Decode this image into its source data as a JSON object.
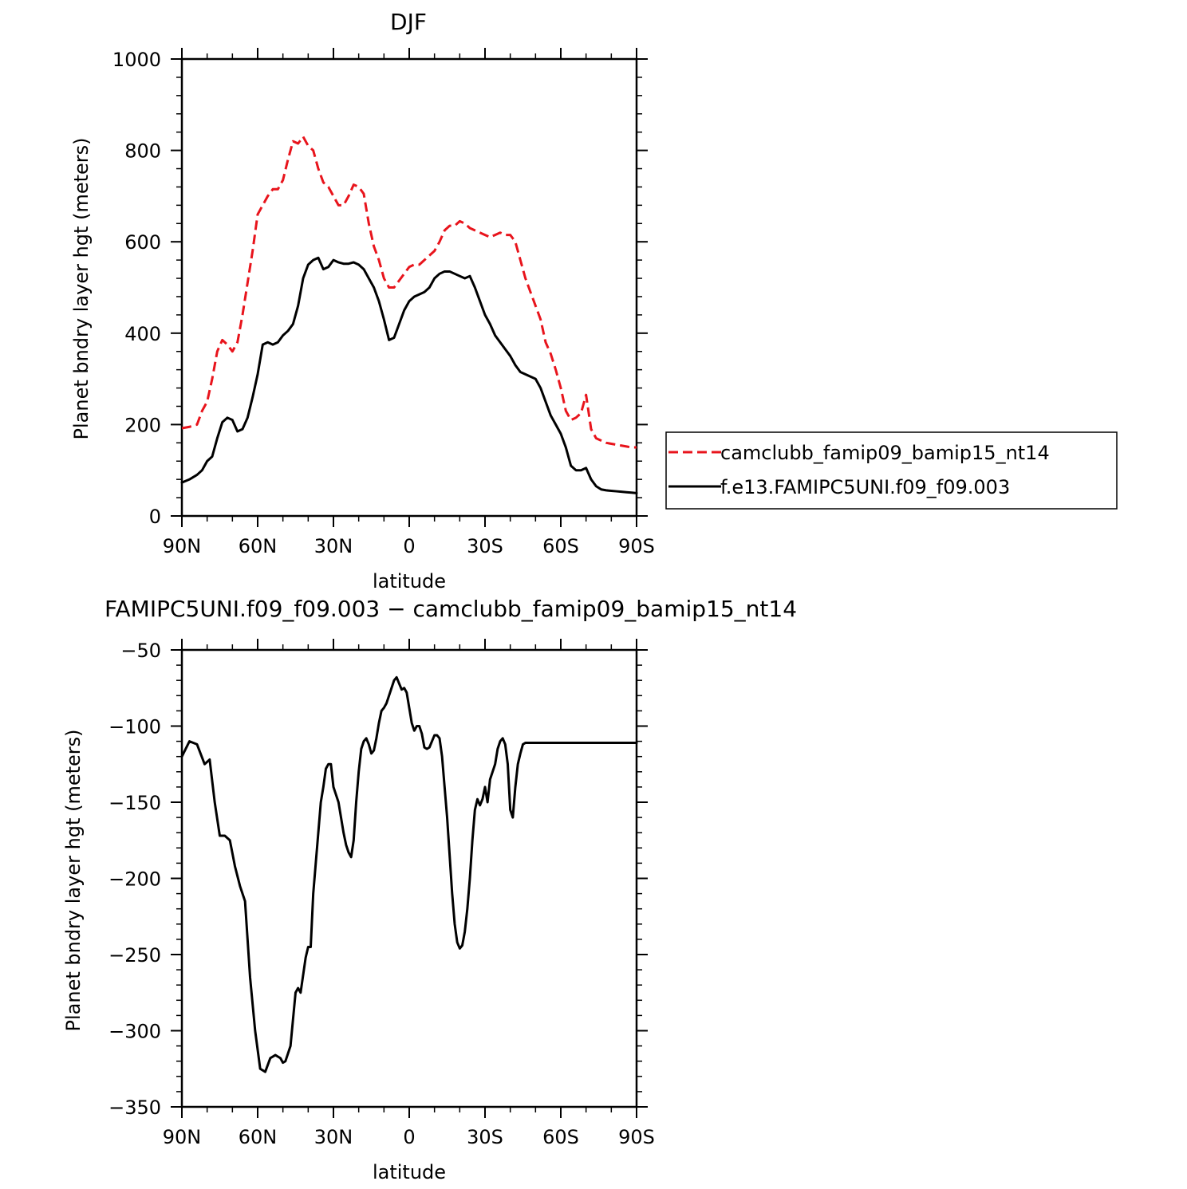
{
  "chart_data": [
    {
      "type": "line",
      "title": "DJF",
      "xlabel": "latitude",
      "ylabel": "Planet bndry layer hgt (meters)",
      "xlim": [
        90,
        -90
      ],
      "ylim": [
        0,
        1000
      ],
      "x_ticks": [
        {
          "value": 90,
          "label": "90N"
        },
        {
          "value": 60,
          "label": "60N"
        },
        {
          "value": 30,
          "label": "30N"
        },
        {
          "value": 0,
          "label": "0"
        },
        {
          "value": -30,
          "label": "30S"
        },
        {
          "value": -60,
          "label": "60S"
        },
        {
          "value": -90,
          "label": "90S"
        }
      ],
      "y_ticks": [
        {
          "value": 0,
          "label": "0"
        },
        {
          "value": 200,
          "label": "200"
        },
        {
          "value": 400,
          "label": "400"
        },
        {
          "value": 600,
          "label": "600"
        },
        {
          "value": 800,
          "label": "800"
        },
        {
          "value": 1000,
          "label": "1000"
        }
      ],
      "legend_position": "right",
      "series": [
        {
          "name": "camclubb_famip09_bamip15_nt14",
          "color": "#e8141c",
          "dash": "dashed",
          "x": [
            90,
            87,
            84,
            82,
            80,
            78,
            76,
            74,
            72,
            70,
            68,
            66,
            64,
            62,
            60,
            58,
            56,
            54,
            52,
            50,
            48,
            46,
            44,
            42,
            40,
            38,
            36,
            34,
            32,
            30,
            28,
            26,
            24,
            22,
            20,
            18,
            16,
            14,
            12,
            10,
            8,
            6,
            4,
            2,
            0,
            -2,
            -4,
            -6,
            -8,
            -10,
            -12,
            -14,
            -16,
            -18,
            -20,
            -22,
            -24,
            -26,
            -28,
            -30,
            -32,
            -34,
            -36,
            -38,
            -40,
            -42,
            -44,
            -46,
            -48,
            -50,
            -52,
            -54,
            -56,
            -58,
            -60,
            -62,
            -64,
            -66,
            -68,
            -70,
            -72,
            -74,
            -76,
            -78,
            -80,
            -82,
            -84,
            -86,
            -88,
            -90
          ],
          "y": [
            192,
            195,
            200,
            230,
            250,
            300,
            360,
            385,
            375,
            360,
            380,
            440,
            510,
            580,
            660,
            680,
            700,
            715,
            715,
            735,
            780,
            820,
            815,
            830,
            810,
            800,
            760,
            730,
            720,
            700,
            680,
            680,
            700,
            725,
            720,
            705,
            640,
            590,
            560,
            520,
            500,
            500,
            515,
            530,
            545,
            550,
            550,
            560,
            570,
            580,
            600,
            625,
            635,
            635,
            645,
            640,
            630,
            625,
            620,
            615,
            610,
            615,
            620,
            615,
            615,
            600,
            560,
            520,
            490,
            460,
            430,
            380,
            355,
            320,
            280,
            230,
            210,
            215,
            225,
            265,
            190,
            170,
            165,
            160,
            158,
            156,
            154,
            152,
            150,
            150
          ]
        },
        {
          "name": "f.e13.FAMIPC5UNI.f09_f09.003",
          "color": "#000000",
          "dash": "solid",
          "x": [
            90,
            87,
            84,
            82,
            80,
            78,
            76,
            74,
            72,
            70,
            68,
            66,
            64,
            62,
            60,
            58,
            56,
            54,
            52,
            50,
            48,
            46,
            44,
            42,
            40,
            38,
            36,
            34,
            32,
            30,
            28,
            26,
            24,
            22,
            20,
            18,
            16,
            14,
            12,
            10,
            8,
            6,
            4,
            2,
            0,
            -2,
            -4,
            -6,
            -8,
            -10,
            -12,
            -14,
            -16,
            -18,
            -20,
            -22,
            -24,
            -26,
            -28,
            -30,
            -32,
            -34,
            -36,
            -38,
            -40,
            -42,
            -44,
            -46,
            -48,
            -50,
            -52,
            -54,
            -56,
            -58,
            -60,
            -62,
            -64,
            -66,
            -68,
            -70,
            -72,
            -74,
            -76,
            -78,
            -80,
            -82,
            -84,
            -86,
            -88,
            -90
          ],
          "y": [
            73,
            80,
            90,
            100,
            120,
            130,
            170,
            205,
            215,
            210,
            185,
            190,
            215,
            260,
            310,
            375,
            380,
            375,
            380,
            395,
            405,
            420,
            460,
            520,
            550,
            560,
            565,
            540,
            545,
            560,
            555,
            552,
            552,
            555,
            550,
            540,
            520,
            500,
            470,
            430,
            385,
            390,
            420,
            450,
            470,
            480,
            485,
            490,
            500,
            520,
            530,
            535,
            535,
            530,
            525,
            520,
            525,
            500,
            470,
            440,
            420,
            395,
            380,
            365,
            350,
            330,
            315,
            310,
            305,
            300,
            280,
            250,
            220,
            200,
            180,
            150,
            110,
            100,
            100,
            105,
            80,
            65,
            58,
            56,
            55,
            54,
            53,
            52,
            51,
            50
          ]
        }
      ]
    },
    {
      "type": "line",
      "title": "FAMIPC5UNI.f09_f09.003 − camclubb_famip09_bamip15_nt14",
      "xlabel": "latitude",
      "ylabel": "Planet bndry layer hgt (meters)",
      "xlim": [
        90,
        -90
      ],
      "ylim": [
        -350,
        -50
      ],
      "x_ticks": [
        {
          "value": 90,
          "label": "90N"
        },
        {
          "value": 60,
          "label": "60N"
        },
        {
          "value": 30,
          "label": "30N"
        },
        {
          "value": 0,
          "label": "0"
        },
        {
          "value": -30,
          "label": "30S"
        },
        {
          "value": -60,
          "label": "60S"
        },
        {
          "value": -90,
          "label": "90S"
        }
      ],
      "y_ticks": [
        {
          "value": -350,
          "label": "−350"
        },
        {
          "value": -300,
          "label": "−300"
        },
        {
          "value": -250,
          "label": "−250"
        },
        {
          "value": -200,
          "label": "−200"
        },
        {
          "value": -150,
          "label": "−150"
        },
        {
          "value": -100,
          "label": "−100"
        },
        {
          "value": -50,
          "label": "−50"
        }
      ],
      "series": [
        {
          "color": "#000000",
          "dash": "solid",
          "x": [
            90,
            87,
            84,
            81,
            79,
            77,
            75,
            73,
            71,
            69,
            67,
            65,
            63,
            61,
            59,
            57,
            55,
            53,
            51,
            50,
            49,
            47,
            45,
            44,
            43,
            41,
            40,
            39,
            38,
            37,
            36,
            35,
            34,
            33,
            32,
            31,
            30,
            29,
            28,
            27,
            26,
            25,
            24,
            23,
            22,
            21,
            20,
            19,
            18,
            17,
            16,
            15,
            14,
            13,
            12,
            11,
            10,
            9,
            8,
            7,
            6,
            5,
            4,
            3,
            2,
            1,
            0,
            -1,
            -2,
            -3,
            -4,
            -5,
            -6,
            -7,
            -8,
            -9,
            -10,
            -11,
            -12,
            -13,
            -14,
            -15,
            -16,
            -17,
            -18,
            -19,
            -20,
            -21,
            -22,
            -23,
            -24,
            -25,
            -26,
            -27,
            -28,
            -29,
            -30,
            -31,
            -32,
            -33,
            -34,
            -35,
            -36,
            -37,
            -38,
            -39,
            -40,
            -41,
            -42,
            -43,
            -44,
            -45,
            -46,
            -47,
            -48,
            -49,
            -50,
            -51,
            -52,
            -53,
            -54,
            -55,
            -56,
            -57,
            -58,
            -59,
            -60,
            -61,
            -62,
            -63,
            -64,
            -65,
            -66,
            -67,
            -68,
            -69,
            -70,
            -71,
            -72,
            -73,
            -74,
            -75,
            -76,
            -77,
            -78,
            -79,
            -80,
            -81,
            -82,
            -83,
            -84,
            -85,
            -86,
            -87,
            -88,
            -89,
            -90
          ],
          "y": [
            -120,
            -110,
            -112,
            -125,
            -122,
            -150,
            -172,
            -172,
            -175,
            -192,
            -205,
            -215,
            -265,
            -300,
            -325,
            -327,
            -318,
            -316,
            -318,
            -321,
            -320,
            -310,
            -275,
            -272,
            -275,
            -252,
            -245,
            -245,
            -210,
            -190,
            -170,
            -150,
            -140,
            -128,
            -125,
            -125,
            -140,
            -145,
            -150,
            -160,
            -170,
            -178,
            -183,
            -186,
            -175,
            -150,
            -130,
            -115,
            -110,
            -108,
            -112,
            -118,
            -116,
            -108,
            -98,
            -90,
            -88,
            -85,
            -80,
            -75,
            -70,
            -68,
            -72,
            -76,
            -75,
            -78,
            -88,
            -98,
            -103,
            -100,
            -100,
            -105,
            -114,
            -115,
            -114,
            -110,
            -106,
            -106,
            -108,
            -120,
            -140,
            -160,
            -185,
            -210,
            -230,
            -242,
            -246,
            -244,
            -235,
            -220,
            -200,
            -175,
            -155,
            -148,
            -152,
            -148,
            -140,
            -150,
            -135,
            -130,
            -125,
            -115,
            -110,
            -108,
            -112,
            -125,
            -155,
            -160,
            -140,
            -125,
            -118,
            -112,
            -111,
            -111,
            -111,
            -111,
            -111,
            -111,
            -111,
            -111,
            -111,
            -111,
            -111,
            -111,
            -111,
            -111,
            -111,
            -111,
            -111,
            -111,
            -111,
            -111,
            -111,
            -111,
            -111,
            -111,
            -111,
            -111,
            -111,
            -111,
            -111,
            -111,
            -111,
            -111,
            -111,
            -111,
            -111,
            -111,
            -111,
            -111,
            -111,
            -111,
            -111,
            -111,
            -111,
            -111,
            -111
          ]
        }
      ]
    }
  ]
}
